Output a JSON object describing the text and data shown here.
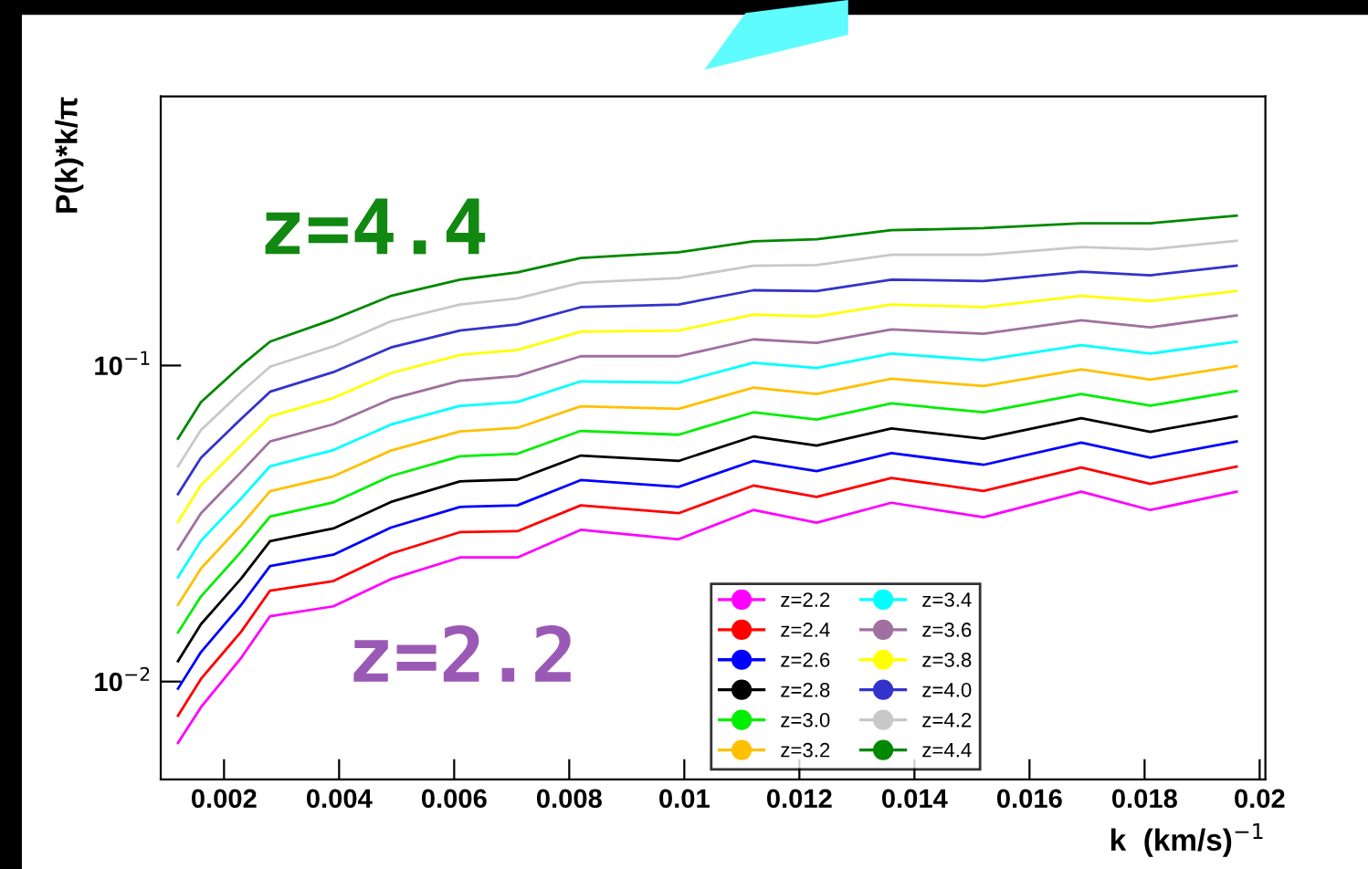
{
  "chart_data": {
    "type": "line",
    "xlabel": "k  (km/s)$^{−1}$",
    "ylabel": "P(k)*k/π",
    "x": [
      0.0012,
      0.0016,
      0.0023,
      0.0028,
      0.0039,
      0.0049,
      0.0061,
      0.0071,
      0.0082,
      0.0099,
      0.0112,
      0.0123,
      0.0136,
      0.0152,
      0.0169,
      0.0181,
      0.0196
    ],
    "series": [
      {
        "name": "z=2.2",
        "color": "#ff00ff",
        "values": [
          0.0064,
          0.0083,
          0.0119,
          0.0161,
          0.0173,
          0.0211,
          0.0247,
          0.0247,
          0.0302,
          0.0282,
          0.0349,
          0.0318,
          0.0368,
          0.0331,
          0.0399,
          0.0349,
          0.0399
        ]
      },
      {
        "name": "z=2.4",
        "color": "#ff0000",
        "values": [
          0.0078,
          0.0102,
          0.0144,
          0.0194,
          0.0208,
          0.0254,
          0.0297,
          0.0299,
          0.0361,
          0.0341,
          0.0417,
          0.0384,
          0.0441,
          0.0401,
          0.0476,
          0.0422,
          0.0479
        ]
      },
      {
        "name": "z=2.6",
        "color": "#0000ff",
        "values": [
          0.0095,
          0.0124,
          0.0175,
          0.0232,
          0.0252,
          0.0307,
          0.0357,
          0.0361,
          0.0434,
          0.0413,
          0.0499,
          0.0463,
          0.0528,
          0.0485,
          0.057,
          0.0511,
          0.0575
        ]
      },
      {
        "name": "z=2.8",
        "color": "#000000",
        "values": [
          0.0116,
          0.0152,
          0.0212,
          0.0278,
          0.0305,
          0.037,
          0.043,
          0.0436,
          0.0519,
          0.0499,
          0.0596,
          0.0558,
          0.0632,
          0.0587,
          0.0681,
          0.0617,
          0.069
        ]
      },
      {
        "name": "z=3.0",
        "color": "#00ee00",
        "values": [
          0.0143,
          0.0186,
          0.0258,
          0.0333,
          0.0369,
          0.0447,
          0.0516,
          0.0526,
          0.0621,
          0.0604,
          0.0711,
          0.0675,
          0.0759,
          0.0711,
          0.0813,
          0.0746,
          0.083
        ]
      },
      {
        "name": "z=3.2",
        "color": "#ffc000",
        "values": [
          0.0175,
          0.0228,
          0.0313,
          0.04,
          0.0446,
          0.0538,
          0.0619,
          0.0635,
          0.0743,
          0.0729,
          0.0851,
          0.0813,
          0.0908,
          0.0861,
          0.0972,
          0.0902,
          0.0995
        ]
      },
      {
        "name": "z=3.4",
        "color": "#00ffff",
        "values": [
          0.0214,
          0.0279,
          0.038,
          0.048,
          0.054,
          0.065,
          0.0745,
          0.0767,
          0.0891,
          0.0883,
          0.102,
          0.0982,
          0.109,
          0.104,
          0.116,
          0.109,
          0.119
        ]
      },
      {
        "name": "z=3.6",
        "color": "#a070a0",
        "values": [
          0.0262,
          0.0341,
          0.0461,
          0.0575,
          0.0652,
          0.0783,
          0.0895,
          0.0927,
          0.107,
          0.107,
          0.121,
          0.118,
          0.13,
          0.126,
          0.139,
          0.132,
          0.144
        ]
      },
      {
        "name": "z=3.8",
        "color": "#ffff00",
        "values": [
          0.032,
          0.0418,
          0.056,
          0.0689,
          0.0789,
          0.0946,
          0.108,
          0.112,
          0.128,
          0.129,
          0.145,
          0.143,
          0.156,
          0.153,
          0.166,
          0.16,
          0.172
        ]
      },
      {
        "name": "z=4.0",
        "color": "#3333cc",
        "values": [
          0.0392,
          0.0511,
          0.0679,
          0.0826,
          0.0953,
          0.114,
          0.129,
          0.135,
          0.153,
          0.156,
          0.173,
          0.172,
          0.187,
          0.185,
          0.198,
          0.193,
          0.207
        ]
      },
      {
        "name": "z=4.2",
        "color": "#c8c8c8",
        "values": [
          0.048,
          0.0625,
          0.0824,
          0.0991,
          0.115,
          0.138,
          0.156,
          0.163,
          0.183,
          0.189,
          0.207,
          0.208,
          0.224,
          0.224,
          0.237,
          0.233,
          0.248
        ]
      },
      {
        "name": "z=4.4",
        "color": "#008800",
        "values": [
          0.0587,
          0.0766,
          0.1,
          0.119,
          0.14,
          0.166,
          0.187,
          0.197,
          0.219,
          0.228,
          0.247,
          0.251,
          0.268,
          0.272,
          0.282,
          0.282,
          0.298
        ]
      }
    ],
    "annotations": [
      "z=4.4",
      "z=2.2"
    ],
    "log": "y",
    "xlim": [
      0.0009,
      0.0201
    ],
    "ylim": [
      0.0049,
      0.71
    ],
    "xticks": [
      0.002,
      0.004,
      0.006,
      0.008,
      0.01,
      0.012,
      0.014,
      0.016,
      0.018,
      0.02
    ],
    "yticks": [
      {
        "value": 0.01,
        "label": "10$^{−2}$"
      },
      {
        "value": 0.1,
        "label": "10$^{−1}$"
      }
    ],
    "legend": "bottom",
    "grid": false,
    "marker": "none",
    "line_style": "solid"
  }
}
